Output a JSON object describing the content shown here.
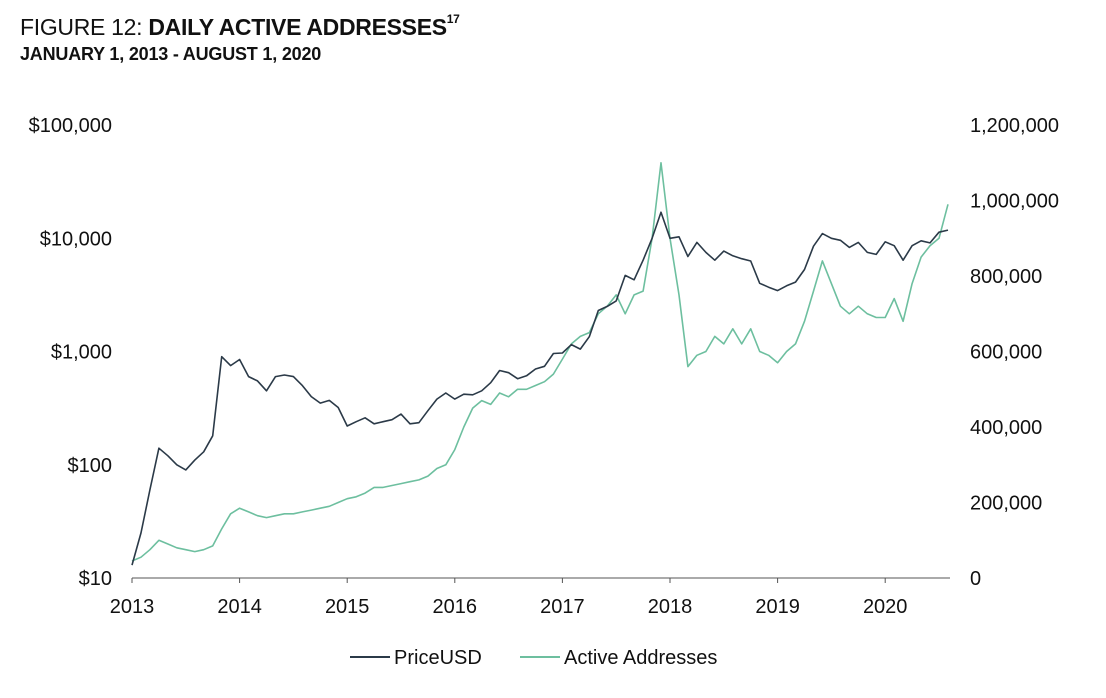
{
  "chart_data": {
    "type": "line",
    "title_prefix": "FIGURE 12:",
    "title": "DAILY ACTIVE ADDRESSES",
    "title_footnote": "17",
    "subtitle": "JANUARY 1, 2013 - AUGUST 1, 2020",
    "x_ticks": [
      "2013",
      "2014",
      "2015",
      "2016",
      "2017",
      "2018",
      "2019",
      "2020"
    ],
    "x_range": [
      "2013-01",
      "2020-08"
    ],
    "y_left": {
      "scale": "log",
      "range": [
        10,
        100000
      ],
      "ticks": [
        10,
        100,
        1000,
        10000,
        100000
      ],
      "tick_labels": [
        "$10",
        "$100",
        "$1,000",
        "$10,000",
        "$100,000"
      ]
    },
    "y_right": {
      "scale": "linear",
      "range": [
        0,
        1200000
      ],
      "ticks": [
        0,
        200000,
        400000,
        600000,
        800000,
        1000000,
        1200000
      ],
      "tick_labels": [
        "0",
        "200,000",
        "400,000",
        "600,000",
        "800,000",
        "1,000,000",
        "1,200,000"
      ]
    },
    "grid": false,
    "legend_position": "bottom",
    "series": [
      {
        "name": "PriceUSD",
        "axis": "left",
        "color": "#2b3a48",
        "x_start": "2013-01",
        "frequency": "monthly",
        "values": [
          13,
          25,
          60,
          140,
          120,
          100,
          90,
          110,
          130,
          180,
          900,
          750,
          850,
          600,
          550,
          450,
          600,
          620,
          600,
          500,
          400,
          350,
          370,
          320,
          220,
          240,
          260,
          230,
          240,
          250,
          280,
          230,
          235,
          300,
          380,
          430,
          380,
          420,
          415,
          450,
          530,
          680,
          650,
          575,
          610,
          700,
          740,
          960,
          970,
          1150,
          1050,
          1350,
          2300,
          2500,
          2800,
          4700,
          4300,
          6400,
          10000,
          17000,
          10000,
          10300,
          6900,
          9200,
          7500,
          6400,
          7700,
          7000,
          6600,
          6300,
          4000,
          3700,
          3450,
          3800,
          4100,
          5300,
          8500,
          11000,
          10000,
          9600,
          8300,
          9200,
          7500,
          7200,
          9300,
          8600,
          6400,
          8600,
          9500,
          9100,
          11300,
          11800
        ]
      },
      {
        "name": "Active Addresses",
        "axis": "right",
        "color": "#6dbf9f",
        "x_start": "2013-01",
        "frequency": "monthly",
        "values": [
          45000,
          55000,
          75000,
          100000,
          90000,
          80000,
          75000,
          70000,
          75000,
          85000,
          130000,
          170000,
          185000,
          175000,
          165000,
          160000,
          165000,
          170000,
          170000,
          175000,
          180000,
          185000,
          190000,
          200000,
          210000,
          215000,
          225000,
          240000,
          240000,
          245000,
          250000,
          255000,
          260000,
          270000,
          290000,
          300000,
          340000,
          400000,
          450000,
          470000,
          460000,
          490000,
          480000,
          500000,
          500000,
          510000,
          520000,
          540000,
          580000,
          620000,
          640000,
          650000,
          700000,
          720000,
          750000,
          700000,
          750000,
          760000,
          900000,
          1100000,
          900000,
          750000,
          560000,
          590000,
          600000,
          640000,
          620000,
          660000,
          620000,
          660000,
          600000,
          590000,
          570000,
          600000,
          620000,
          680000,
          760000,
          840000,
          780000,
          720000,
          700000,
          720000,
          700000,
          690000,
          690000,
          740000,
          680000,
          780000,
          850000,
          880000,
          900000,
          990000
        ]
      }
    ]
  }
}
